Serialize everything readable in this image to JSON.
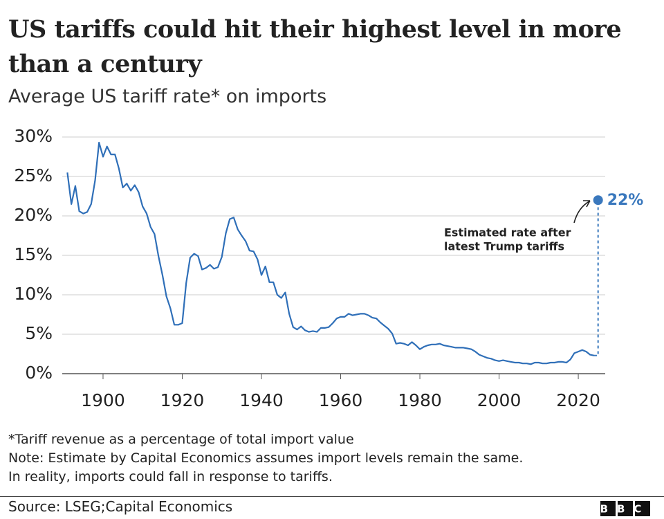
{
  "chart_data": {
    "type": "line",
    "title": "US tariffs could hit their highest level in more than a century",
    "subtitle": "Average US tariff rate* on imports",
    "color": "#2f6fb8",
    "grid": true,
    "xlim": [
      1889.7,
      2026.8
    ],
    "xticks": [
      1900,
      1920,
      1940,
      1960,
      1980,
      2000,
      2020
    ],
    "ylim": [
      0,
      30
    ],
    "yticks": [
      {
        "value": 0,
        "label": "0%"
      },
      {
        "value": 5,
        "label": "5%"
      },
      {
        "value": 10,
        "label": "10%"
      },
      {
        "value": 15,
        "label": "15%"
      },
      {
        "value": 20,
        "label": "20%"
      },
      {
        "value": 25,
        "label": "25%"
      },
      {
        "value": 30,
        "label": "30%"
      }
    ],
    "x": [
      1891,
      1892,
      1893,
      1894,
      1895,
      1896,
      1897,
      1898,
      1899,
      1900,
      1901,
      1902,
      1903,
      1904,
      1905,
      1906,
      1907,
      1908,
      1909,
      1910,
      1911,
      1912,
      1913,
      1914,
      1915,
      1916,
      1917,
      1918,
      1919,
      1920,
      1921,
      1922,
      1923,
      1924,
      1925,
      1926,
      1927,
      1928,
      1929,
      1930,
      1931,
      1932,
      1933,
      1934,
      1935,
      1936,
      1937,
      1938,
      1939,
      1940,
      1941,
      1942,
      1943,
      1944,
      1945,
      1946,
      1947,
      1948,
      1949,
      1950,
      1951,
      1952,
      1953,
      1954,
      1955,
      1956,
      1957,
      1958,
      1959,
      1960,
      1961,
      1962,
      1963,
      1964,
      1965,
      1966,
      1967,
      1968,
      1969,
      1970,
      1971,
      1972,
      1973,
      1974,
      1975,
      1976,
      1977,
      1978,
      1979,
      1980,
      1981,
      1982,
      1983,
      1984,
      1985,
      1986,
      1987,
      1988,
      1989,
      1990,
      1991,
      1992,
      1993,
      1994,
      1995,
      1996,
      1997,
      1998,
      1999,
      2000,
      2001,
      2002,
      2003,
      2004,
      2005,
      2006,
      2007,
      2008,
      2009,
      2010,
      2011,
      2012,
      2013,
      2014,
      2015,
      2016,
      2017,
      2018,
      2019,
      2020,
      2021,
      2022,
      2023,
      2024
    ],
    "values": [
      25.5,
      21.5,
      23.8,
      20.6,
      20.3,
      20.5,
      21.5,
      24.5,
      29.3,
      27.5,
      28.8,
      27.8,
      27.8,
      26,
      23.6,
      24.1,
      23.2,
      23.9,
      23,
      21.2,
      20.3,
      18.6,
      17.7,
      14.9,
      12.5,
      9.8,
      8.3,
      6.2,
      6.2,
      6.4,
      11.5,
      14.7,
      15.2,
      14.9,
      13.2,
      13.4,
      13.8,
      13.3,
      13.5,
      14.8,
      17.8,
      19.6,
      19.8,
      18.3,
      17.5,
      16.8,
      15.6,
      15.5,
      14.5,
      12.5,
      13.6,
      11.6,
      11.6,
      10,
      9.6,
      10.3,
      7.6,
      5.9,
      5.6,
      6.0,
      5.5,
      5.3,
      5.4,
      5.3,
      5.8,
      5.8,
      5.9,
      6.4,
      7.0,
      7.2,
      7.2,
      7.6,
      7.4,
      7.5,
      7.6,
      7.6,
      7.4,
      7.1,
      7.0,
      6.5,
      6.1,
      5.7,
      5.1,
      3.8,
      3.9,
      3.8,
      3.6,
      4.0,
      3.6,
      3.1,
      3.4,
      3.6,
      3.7,
      3.7,
      3.8,
      3.6,
      3.5,
      3.4,
      3.3,
      3.3,
      3.3,
      3.2,
      3.1,
      2.8,
      2.4,
      2.2,
      2.0,
      1.9,
      1.7,
      1.6,
      1.7,
      1.6,
      1.5,
      1.4,
      1.4,
      1.3,
      1.3,
      1.2,
      1.4,
      1.4,
      1.3,
      1.3,
      1.4,
      1.4,
      1.5,
      1.5,
      1.4,
      1.8,
      2.6,
      2.8,
      3.0,
      2.8,
      2.4,
      2.3
    ],
    "estimate": {
      "x": 2025,
      "value": 22,
      "value_label": "22%",
      "color": "#3a78bd",
      "annotation": [
        "Estimated rate after",
        "latest Trump tariffs"
      ]
    },
    "notes": [
      "*Tariff revenue as a percentage of total import value",
      "Note: Estimate by Capital Economics assumes import levels remain the same.",
      "In reality, imports could fall in response to tariffs."
    ],
    "source": "Source: LSEG;Capital Economics",
    "logo": "BBC"
  }
}
